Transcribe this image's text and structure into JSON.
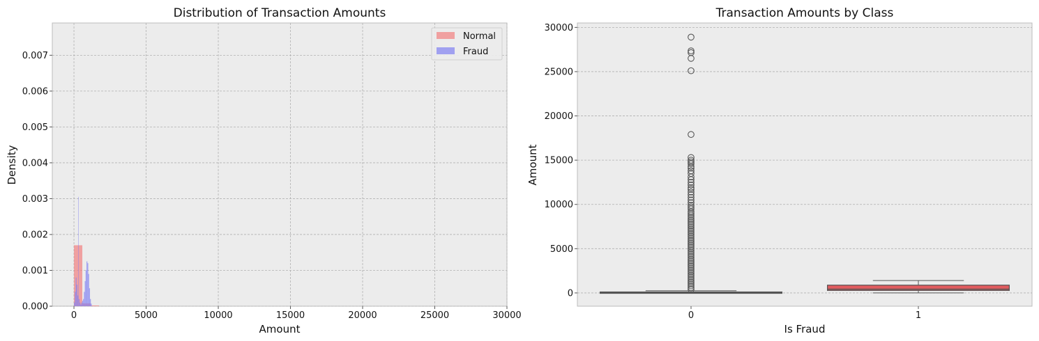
{
  "chart_data": [
    {
      "type": "histogram",
      "title": "Distribution of Transaction Amounts",
      "xlabel": "Amount",
      "ylabel": "Density",
      "xlim": [
        -1500,
        30000
      ],
      "ylim": [
        0,
        0.0079
      ],
      "xticks": [
        0,
        5000,
        10000,
        15000,
        20000,
        25000,
        30000
      ],
      "yticks": [
        0.0,
        0.001,
        0.002,
        0.003,
        0.004,
        0.005,
        0.006,
        0.007
      ],
      "ytick_labels": [
        "0.000",
        "0.001",
        "0.002",
        "0.003",
        "0.004",
        "0.005",
        "0.006",
        "0.007"
      ],
      "grid": true,
      "legend": "top-right",
      "series": [
        {
          "name": "Normal",
          "color": "#f28080",
          "bins": [
            {
              "x0": 0,
              "x1": 580,
              "density": 0.0017
            },
            {
              "x0": 580,
              "x1": 1160,
              "density": 8e-05
            },
            {
              "x0": 1160,
              "x1": 1740,
              "density": 2e-05
            }
          ]
        },
        {
          "name": "Fraud",
          "color": "#8080f2",
          "bins": [
            {
              "x0": 0,
              "x1": 60,
              "density": 0.0001
            },
            {
              "x0": 60,
              "x1": 120,
              "density": 0.0004
            },
            {
              "x0": 120,
              "x1": 180,
              "density": 0.0008
            },
            {
              "x0": 180,
              "x1": 240,
              "density": 0.0006
            },
            {
              "x0": 240,
              "x1": 300,
              "density": 0.0003
            },
            {
              "x0": 300,
              "x1": 330,
              "density": 0.00305
            },
            {
              "x0": 330,
              "x1": 390,
              "density": 0.0002
            },
            {
              "x0": 390,
              "x1": 450,
              "density": 0.0001
            },
            {
              "x0": 450,
              "x1": 510,
              "density": 5e-05
            },
            {
              "x0": 510,
              "x1": 570,
              "density": 0.0001
            },
            {
              "x0": 570,
              "x1": 630,
              "density": 0.00015
            },
            {
              "x0": 630,
              "x1": 690,
              "density": 0.0002
            },
            {
              "x0": 690,
              "x1": 750,
              "density": 0.0004
            },
            {
              "x0": 750,
              "x1": 810,
              "density": 0.0007
            },
            {
              "x0": 810,
              "x1": 870,
              "density": 0.001
            },
            {
              "x0": 870,
              "x1": 930,
              "density": 0.00125
            },
            {
              "x0": 930,
              "x1": 990,
              "density": 0.0012
            },
            {
              "x0": 990,
              "x1": 1050,
              "density": 0.0009
            },
            {
              "x0": 1050,
              "x1": 1110,
              "density": 0.0005
            },
            {
              "x0": 1110,
              "x1": 1170,
              "density": 0.0002
            },
            {
              "x0": 1170,
              "x1": 1230,
              "density": 7e-05
            }
          ]
        }
      ]
    },
    {
      "type": "box",
      "title": "Transaction Amounts by Class",
      "xlabel": "Is Fraud",
      "ylabel": "Amount",
      "categories": [
        "0",
        "1"
      ],
      "ylim": [
        -1500,
        30500
      ],
      "yticks": [
        0,
        5000,
        10000,
        15000,
        20000,
        25000,
        30000
      ],
      "grid": true,
      "boxes": [
        {
          "category": "0",
          "color": "#5a5a5a",
          "whisker_low": 0,
          "q1": 20,
          "median": 50,
          "q3": 110,
          "whisker_high": 250,
          "outliers": [
            28900,
            27350,
            27150,
            26500,
            25100,
            17900,
            15300,
            15000,
            14800,
            14600,
            14300,
            14100,
            13800,
            13500,
            13100,
            12800,
            12500,
            12200,
            11900,
            11700,
            11400,
            11100,
            10800,
            10500,
            10200,
            9900,
            9700,
            9500,
            9200,
            9000,
            8800,
            8600,
            8400,
            8200,
            8000,
            7800,
            7600,
            7400,
            7200,
            7000,
            6800,
            6600,
            6400,
            6200,
            6000,
            5800,
            5600,
            5400,
            5200,
            5000,
            4800,
            4600,
            4400,
            4200,
            4000,
            3800,
            3600,
            3400,
            3200,
            3000,
            2800,
            2600,
            2400,
            2200,
            2000,
            1800,
            1600,
            1400,
            1200,
            1000,
            800,
            600,
            400
          ]
        },
        {
          "category": "1",
          "color": "#e05c5f",
          "whisker_low": 0,
          "q1": 280,
          "median": 420,
          "q3": 880,
          "whisker_high": 1400,
          "outliers": []
        }
      ]
    }
  ]
}
